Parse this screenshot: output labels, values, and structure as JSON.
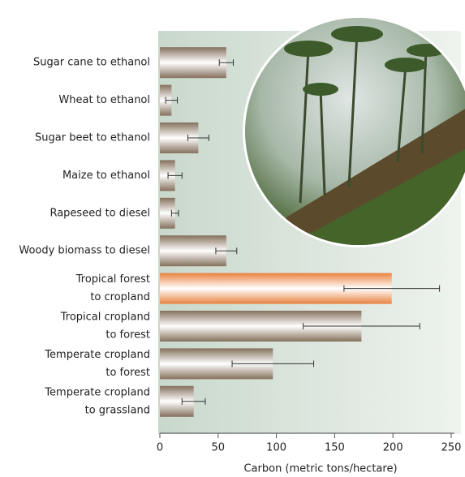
{
  "chart_data": {
    "type": "bar",
    "orientation": "horizontal",
    "x_label": "Carbon (metric tons/hectare)",
    "categories": [
      [
        "Sugar cane to ethanol"
      ],
      [
        "Wheat to ethanol"
      ],
      [
        "Sugar beet to ethanol"
      ],
      [
        "Maize to ethanol"
      ],
      [
        "Rapeseed to diesel"
      ],
      [
        "Woody biomass to diesel"
      ],
      [
        "Tropical forest",
        "to cropland"
      ],
      [
        "Tropical cropland",
        "to forest"
      ],
      [
        "Temperate cropland",
        "to forest"
      ],
      [
        "Temperate cropland",
        "to grassland"
      ]
    ],
    "values": [
      57,
      10,
      33,
      13,
      13,
      57,
      199,
      173,
      97,
      29
    ],
    "errors": [
      6,
      5,
      9,
      6,
      3,
      9,
      41,
      50,
      35,
      10
    ],
    "colors": [
      "#85705c",
      "#85705c",
      "#85705c",
      "#85705c",
      "#85705c",
      "#85705c",
      "#e9823f",
      "#85705c",
      "#85705c",
      "#85705c"
    ],
    "xlim": [
      0,
      250
    ],
    "xticks": [
      0,
      50,
      100,
      150,
      200,
      250
    ]
  }
}
